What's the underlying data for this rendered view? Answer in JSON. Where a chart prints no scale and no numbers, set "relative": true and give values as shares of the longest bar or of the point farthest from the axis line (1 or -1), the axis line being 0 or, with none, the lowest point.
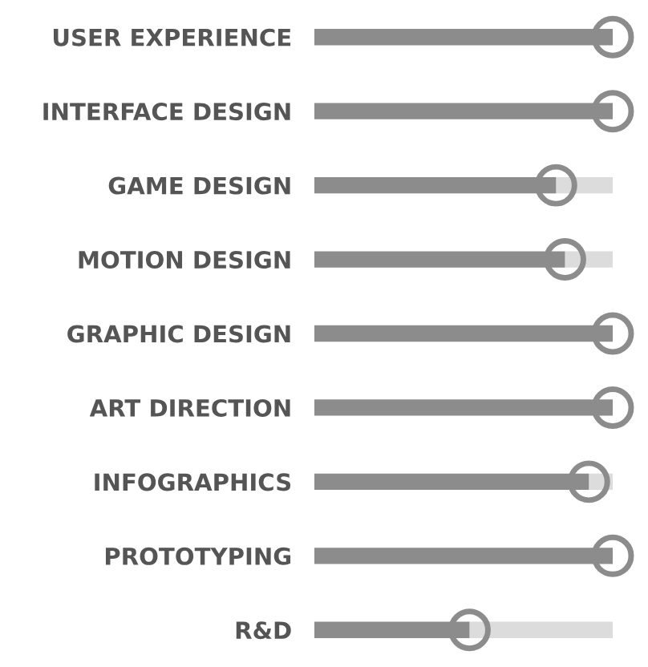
{
  "chart_data": {
    "type": "bar",
    "orientation": "horizontal",
    "stacked": true,
    "relative": true,
    "legend": false,
    "grid": false,
    "categories": [
      "USER EXPERIENCE",
      "INTERFACE DESIGN",
      "GAME DESIGN",
      "MOTION DESIGN",
      "GRAPHIC DESIGN",
      "ART DIRECTION",
      "INFOGRAPHICS",
      "PROTOTYPING",
      "R&D"
    ],
    "series": [
      {
        "color": "#8c8c8c",
        "marker": "circle",
        "values": [
          1,
          1,
          0.81,
          0.84,
          1,
          1,
          0.92,
          1,
          0.52
        ]
      },
      {
        "color": "#dcdcdc",
        "marker": "none",
        "values": [
          0,
          0,
          0.19,
          0.16,
          0,
          0,
          0.08,
          0,
          0.48
        ]
      }
    ]
  }
}
